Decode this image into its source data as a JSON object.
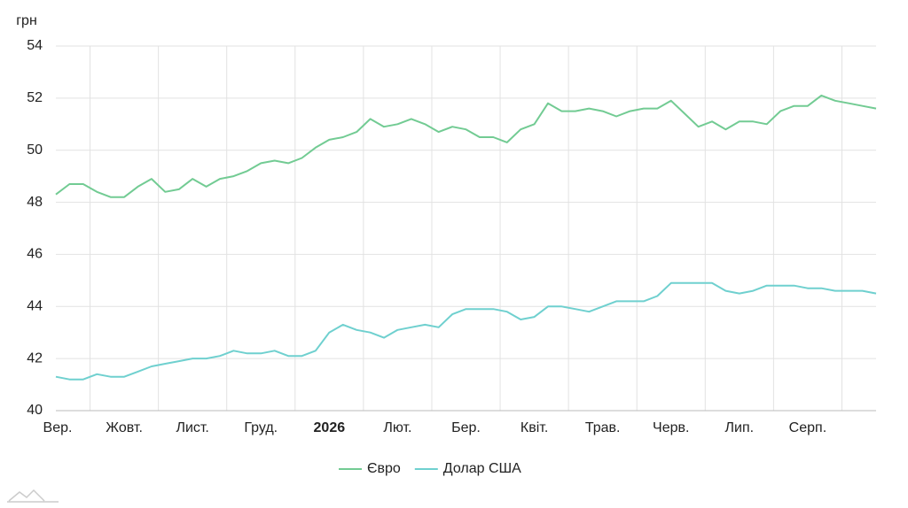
{
  "chart_data": {
    "type": "line",
    "y_label": "грн",
    "categories": [
      "Вер.",
      null,
      null,
      null,
      null,
      "Жовт.",
      null,
      null,
      null,
      null,
      "Лист.",
      null,
      null,
      null,
      null,
      "Груд.",
      null,
      null,
      null,
      null,
      "2026",
      null,
      null,
      null,
      null,
      "Лют.",
      null,
      null,
      null,
      null,
      "Бер.",
      null,
      null,
      null,
      null,
      "Квіт.",
      null,
      null,
      null,
      null,
      "Трав.",
      null,
      null,
      null,
      null,
      "Черв.",
      null,
      null,
      null,
      null,
      "Лип.",
      null,
      null,
      null,
      null,
      "Серп.",
      null,
      null,
      null,
      null,
      null
    ],
    "series": [
      {
        "name": "Євро",
        "color": "#72cb93",
        "values": [
          48.3,
          48.7,
          48.7,
          48.4,
          48.2,
          48.2,
          48.6,
          48.9,
          48.4,
          48.5,
          48.9,
          48.6,
          48.9,
          49.0,
          49.2,
          49.5,
          49.6,
          49.5,
          49.7,
          50.1,
          50.4,
          50.5,
          50.7,
          51.2,
          50.9,
          51.0,
          51.2,
          51.0,
          50.7,
          50.9,
          50.8,
          50.5,
          50.5,
          50.3,
          50.8,
          51.0,
          51.8,
          51.5,
          51.5,
          51.6,
          51.5,
          51.3,
          51.5,
          51.6,
          51.6,
          51.9,
          51.4,
          50.9,
          51.1,
          50.8,
          51.1,
          51.1,
          51.0,
          51.5,
          51.7,
          51.7,
          52.1,
          51.9,
          51.8,
          51.7,
          51.6
        ]
      },
      {
        "name": "Долар США",
        "color": "#6fd0cf",
        "values": [
          41.3,
          41.2,
          41.2,
          41.4,
          41.3,
          41.3,
          41.5,
          41.7,
          41.8,
          41.9,
          42.0,
          42.0,
          42.1,
          42.3,
          42.2,
          42.2,
          42.3,
          42.1,
          42.1,
          42.3,
          43.0,
          43.3,
          43.1,
          43.0,
          42.8,
          43.1,
          43.2,
          43.3,
          43.2,
          43.7,
          43.9,
          43.9,
          43.9,
          43.8,
          43.5,
          43.6,
          44.0,
          44.0,
          43.9,
          43.8,
          44.0,
          44.2,
          44.2,
          44.2,
          44.4,
          44.9,
          44.9,
          44.9,
          44.9,
          44.6,
          44.5,
          44.6,
          44.8,
          44.8,
          44.8,
          44.7,
          44.7,
          44.6,
          44.6,
          44.6,
          44.5
        ]
      }
    ],
    "ylim": [
      40,
      54
    ],
    "yticks": [
      40,
      42,
      44,
      46,
      48,
      50,
      52,
      54
    ],
    "grid": true
  }
}
